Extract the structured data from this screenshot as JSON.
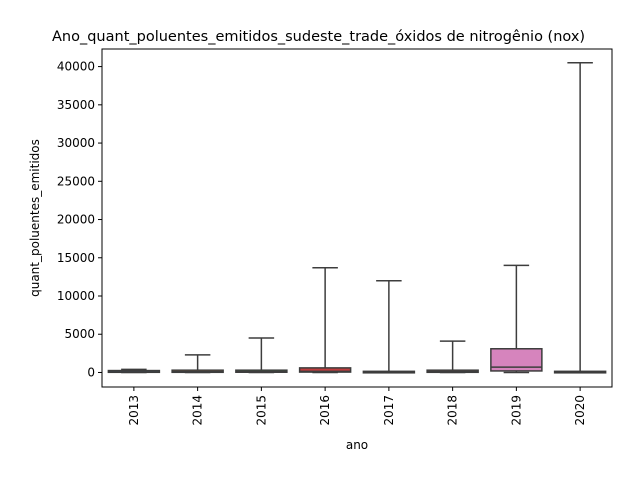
{
  "chart_data": {
    "type": "box",
    "title": "Ano_quant_poluentes_emitidos_sudeste_trade_óxidos de nitrogênio (nox)",
    "xlabel": "ano",
    "ylabel": "quant_poluentes_emitidos",
    "categories": [
      "2013",
      "2014",
      "2015",
      "2016",
      "2017",
      "2018",
      "2019",
      "2020"
    ],
    "ylim": [
      -1900,
      42300
    ],
    "yticks": [
      0,
      5000,
      10000,
      15000,
      20000,
      25000,
      30000,
      35000,
      40000
    ],
    "yticks_labels": [
      "0",
      "5000",
      "10000",
      "15000",
      "20000",
      "25000",
      "30000",
      "35000",
      "40000"
    ],
    "boxes": [
      {
        "category": "2013",
        "min": 0,
        "q1": 20,
        "median": 80,
        "q3": 250,
        "max": 400,
        "color": "#3a75b0"
      },
      {
        "category": "2014",
        "min": 0,
        "q1": 20,
        "median": 100,
        "q3": 300,
        "max": 2300,
        "color": "#e1812c"
      },
      {
        "category": "2015",
        "min": 0,
        "q1": 30,
        "median": 100,
        "q3": 300,
        "max": 4500,
        "color": "#3a923a"
      },
      {
        "category": "2016",
        "min": 0,
        "q1": 50,
        "median": 150,
        "q3": 600,
        "max": 13700,
        "color": "#c03d3e"
      },
      {
        "category": "2017",
        "min": 0,
        "q1": 10,
        "median": 50,
        "q3": 150,
        "max": 12000,
        "color": "#9372b2"
      },
      {
        "category": "2018",
        "min": 0,
        "q1": 20,
        "median": 100,
        "q3": 300,
        "max": 4100,
        "color": "#845b53"
      },
      {
        "category": "2019",
        "min": 0,
        "q1": 200,
        "median": 700,
        "q3": 3100,
        "max": 14000,
        "color": "#d684bd"
      },
      {
        "category": "2020",
        "min": 0,
        "q1": 10,
        "median": 50,
        "q3": 150,
        "max": 40500,
        "color": "#7f7f7f"
      }
    ],
    "grid": false,
    "legend": "none"
  }
}
